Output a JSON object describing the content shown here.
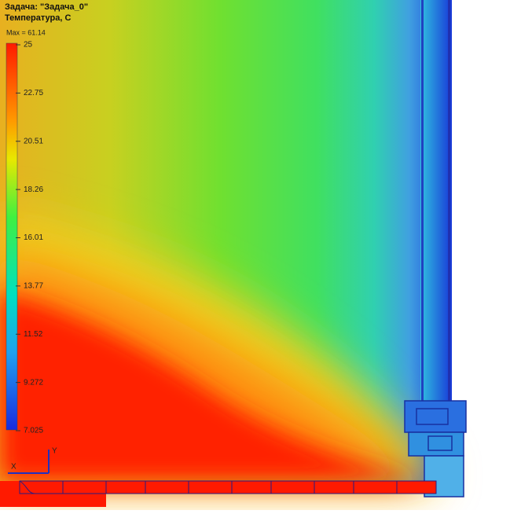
{
  "header": {
    "task": "Задача: \"Задача_0\"",
    "quantity": "Температура, С",
    "max": "Max = 61.14"
  },
  "colorbar": {
    "ticks": [
      "25",
      "22.75",
      "20.51",
      "18.26",
      "16.01",
      "13.77",
      "11.52",
      "9.272",
      "7.025"
    ]
  },
  "axes": {
    "y": "Y",
    "x": "X"
  }
}
